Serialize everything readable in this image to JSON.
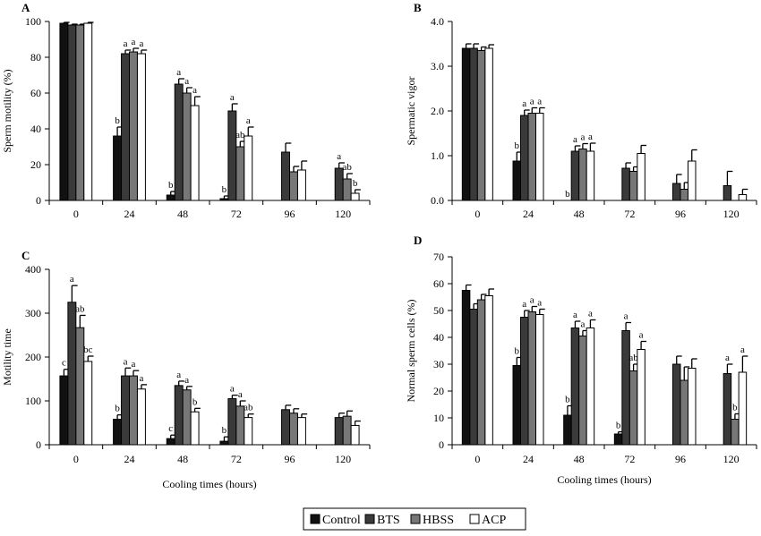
{
  "colors": {
    "Control": "#111111",
    "BTS": "#3a3a3a",
    "HBSS": "#777777",
    "ACP": "#ffffff",
    "outline": "#000000"
  },
  "legend": {
    "placement": "bottom",
    "items": [
      "Control",
      "BTS",
      "HBSS",
      "ACP"
    ]
  },
  "chart_data": [
    {
      "type": "bar",
      "panel": "A",
      "title": "",
      "xlabel": "",
      "ylabel": "Sperm motility (%)",
      "categories": [
        "0",
        "24",
        "48",
        "72",
        "96",
        "120"
      ],
      "ylim": [
        0,
        100
      ],
      "yticks": [
        "0",
        "20",
        "40",
        "60",
        "80",
        "100"
      ],
      "series": [
        {
          "name": "Control",
          "values": [
            99,
            36,
            3,
            1,
            null,
            null
          ],
          "errors": [
            0.5,
            5,
            2,
            1.5,
            0,
            0
          ],
          "labels": [
            "",
            "b",
            "b",
            "b",
            "",
            ""
          ]
        },
        {
          "name": "BTS",
          "values": [
            98,
            82,
            65,
            50,
            27,
            18
          ],
          "errors": [
            0.5,
            2,
            3,
            4,
            5,
            3
          ],
          "labels": [
            "",
            "a",
            "a",
            "a",
            "",
            "a"
          ]
        },
        {
          "name": "HBSS",
          "values": [
            98,
            83,
            60,
            30,
            16,
            12
          ],
          "errors": [
            0.5,
            2,
            3,
            3,
            3,
            3
          ],
          "labels": [
            "",
            "a",
            "a",
            "ab",
            "",
            "ab"
          ]
        },
        {
          "name": "ACP",
          "values": [
            99,
            82,
            53,
            36,
            17,
            4
          ],
          "errors": [
            0.5,
            2,
            5,
            5,
            5,
            2
          ],
          "labels": [
            "",
            "a",
            "a",
            "a",
            "",
            "b"
          ]
        }
      ]
    },
    {
      "type": "bar",
      "panel": "B",
      "title": "",
      "xlabel": "",
      "ylabel": "Spermatic vigor",
      "categories": [
        "0",
        "24",
        "48",
        "72",
        "96",
        "120"
      ],
      "ylim": [
        0,
        4
      ],
      "yticks": [
        "0.0",
        "1.0",
        "2.0",
        "3.0",
        "4.0"
      ],
      "series": [
        {
          "name": "Control",
          "values": [
            3.4,
            0.88,
            0,
            0,
            null,
            null
          ],
          "errors": [
            0.1,
            0.2,
            0,
            0,
            0,
            0
          ],
          "labels": [
            "",
            "b",
            "b",
            "",
            "",
            ""
          ]
        },
        {
          "name": "BTS",
          "values": [
            3.4,
            1.9,
            1.1,
            0.72,
            0.38,
            0.33
          ],
          "errors": [
            0.1,
            0.12,
            0.12,
            0.12,
            0.2,
            0.32
          ],
          "labels": [
            "",
            "a",
            "a",
            "",
            "",
            ""
          ]
        },
        {
          "name": "HBSS",
          "values": [
            3.35,
            1.95,
            1.15,
            0.65,
            0.25,
            0
          ],
          "errors": [
            0.08,
            0.12,
            0.12,
            0.1,
            0.15,
            0
          ],
          "labels": [
            "",
            "a",
            "a",
            "",
            "",
            ""
          ]
        },
        {
          "name": "ACP",
          "values": [
            3.4,
            1.95,
            1.1,
            1.05,
            0.88,
            0.13
          ],
          "errors": [
            0.08,
            0.12,
            0.18,
            0.18,
            0.25,
            0.12
          ],
          "labels": [
            "",
            "a",
            "a",
            "",
            "",
            ""
          ]
        }
      ]
    },
    {
      "type": "bar",
      "panel": "C",
      "title": "",
      "xlabel": "Cooling times (hours)",
      "ylabel": "Motility time",
      "categories": [
        "0",
        "24",
        "48",
        "72",
        "96",
        "120"
      ],
      "ylim": [
        0,
        400
      ],
      "yticks": [
        "0",
        "100",
        "200",
        "300",
        "400"
      ],
      "series": [
        {
          "name": "Control",
          "values": [
            157,
            58,
            14,
            8,
            null,
            null
          ],
          "errors": [
            15,
            10,
            8,
            10,
            0,
            0
          ],
          "labels": [
            "c",
            "b",
            "c",
            "b",
            "",
            ""
          ]
        },
        {
          "name": "BTS",
          "values": [
            325,
            157,
            135,
            105,
            80,
            62
          ],
          "errors": [
            38,
            18,
            10,
            8,
            10,
            10
          ],
          "labels": [
            "a",
            "a",
            "a",
            "a",
            "",
            ""
          ]
        },
        {
          "name": "HBSS",
          "values": [
            267,
            157,
            125,
            88,
            72,
            65
          ],
          "errors": [
            28,
            12,
            8,
            12,
            10,
            12
          ],
          "labels": [
            "ab",
            "a",
            "a",
            "a",
            "",
            ""
          ]
        },
        {
          "name": "ACP",
          "values": [
            190,
            127,
            75,
            62,
            62,
            44
          ],
          "errors": [
            12,
            10,
            8,
            8,
            8,
            10
          ],
          "labels": [
            "bc",
            "a",
            "b",
            "ab",
            "",
            ""
          ]
        }
      ]
    },
    {
      "type": "bar",
      "panel": "D",
      "title": "",
      "xlabel": "Cooling times (hours)",
      "ylabel": "Normal sperm cells (%)",
      "categories": [
        "0",
        "24",
        "48",
        "72",
        "96",
        "120"
      ],
      "ylim": [
        0,
        70
      ],
      "yticks": [
        "0",
        "10",
        "20",
        "30",
        "40",
        "50",
        "60",
        "70"
      ],
      "series": [
        {
          "name": "Control",
          "values": [
            57.5,
            29.5,
            11,
            4,
            null,
            null
          ],
          "errors": [
            2,
            3,
            3.5,
            0.8,
            0,
            0
          ],
          "labels": [
            "",
            "b",
            "b",
            "b",
            "",
            ""
          ]
        },
        {
          "name": "BTS",
          "values": [
            50.5,
            47.5,
            43.5,
            42.5,
            30,
            26.5
          ],
          "errors": [
            2,
            2.5,
            2.5,
            3,
            3,
            3.5
          ],
          "labels": [
            "",
            "a",
            "a",
            "a",
            "",
            "a"
          ]
        },
        {
          "name": "HBSS",
          "values": [
            54,
            49.5,
            40.5,
            27.5,
            24,
            9.5
          ],
          "errors": [
            2,
            2,
            2,
            2.5,
            5,
            2
          ],
          "labels": [
            "",
            "a",
            "a",
            "ab",
            "",
            "b"
          ]
        },
        {
          "name": "ACP",
          "values": [
            55.5,
            48.5,
            43.5,
            35.5,
            28.5,
            27
          ],
          "errors": [
            2.5,
            2,
            3,
            3,
            3.5,
            6
          ],
          "labels": [
            "",
            "a",
            "a",
            "a",
            "",
            "a"
          ]
        }
      ]
    }
  ]
}
